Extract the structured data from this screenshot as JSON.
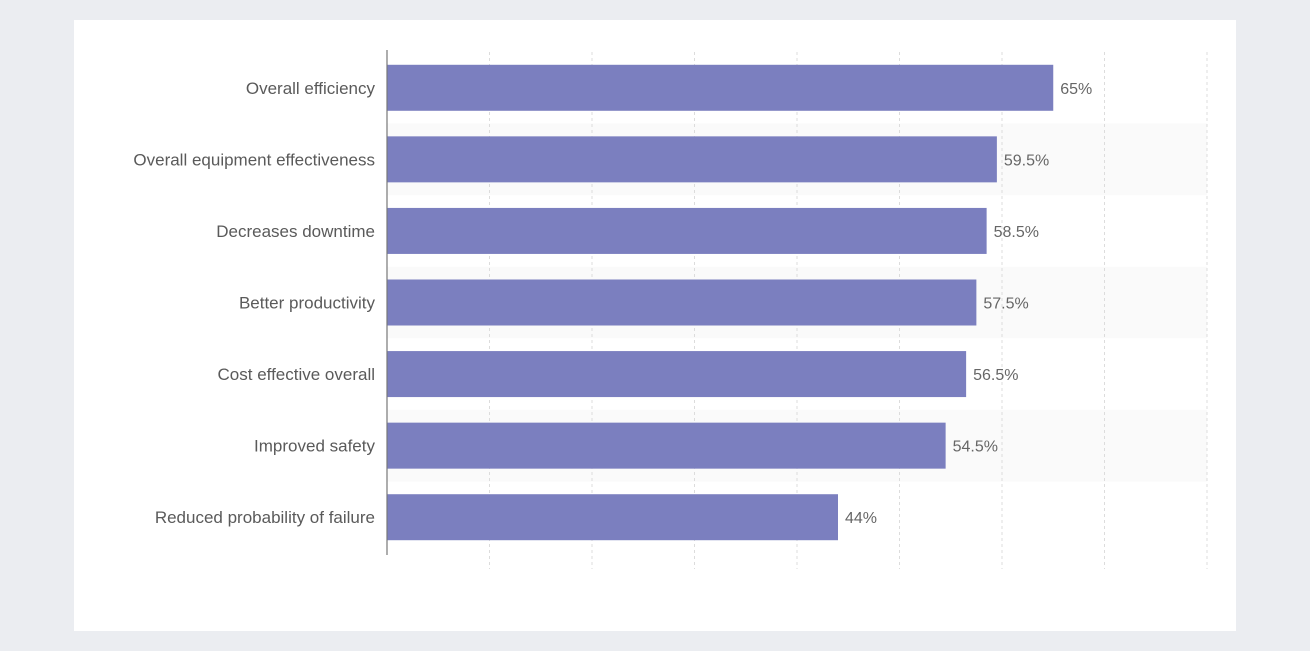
{
  "chart_data": {
    "type": "bar",
    "orientation": "horizontal",
    "categories": [
      "Overall efficiency",
      "Overall equipment effectiveness",
      "Decreases downtime",
      "Better productivity",
      "Cost effective overall",
      "Improved safety",
      "Reduced probability of failure"
    ],
    "values": [
      65,
      59.5,
      58.5,
      57.5,
      56.5,
      54.5,
      44
    ],
    "value_labels": [
      "65%",
      "59.5%",
      "58.5%",
      "57.5%",
      "56.5%",
      "54.5%",
      "44%"
    ],
    "unit": "%",
    "xlim": [
      0,
      80
    ],
    "grid": true,
    "legend": "none",
    "bar_color": "#7b7fbf",
    "alt_band_color": "#fafafa",
    "title": "",
    "xlabel": "",
    "ylabel": ""
  }
}
